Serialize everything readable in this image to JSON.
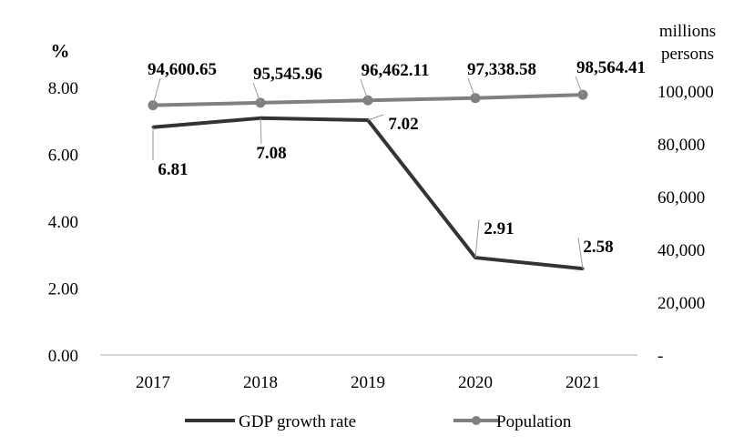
{
  "chart_data": {
    "type": "line",
    "categories": [
      "2017",
      "2018",
      "2019",
      "2020",
      "2021"
    ],
    "series": [
      {
        "name": "GDP growth rate",
        "axis": "left",
        "color": "#333333",
        "values": [
          6.81,
          7.08,
          7.02,
          2.91,
          2.58
        ],
        "labels": [
          "6.81",
          "7.08",
          "7.02",
          "2.91",
          "2.58"
        ]
      },
      {
        "name": "Population",
        "axis": "right",
        "color": "#808080",
        "marker": "circle",
        "values": [
          94600.65,
          95545.96,
          96462.11,
          97338.58,
          98564.41
        ],
        "labels": [
          "94,600.65",
          "95,545.96",
          "96,462.11",
          "97,338.58",
          "98,564.41"
        ]
      }
    ],
    "left_axis": {
      "unit": "%",
      "ylim": [
        0,
        8
      ],
      "ticks": [
        0,
        2,
        4,
        6,
        8
      ],
      "tick_labels": [
        "0.00",
        "2.00",
        "4.00",
        "6.00",
        "8.00"
      ]
    },
    "right_axis": {
      "unit_line1": "millions",
      "unit_line2": "persons",
      "ylim": [
        0,
        100000
      ],
      "ticks": [
        0,
        20000,
        40000,
        60000,
        80000,
        100000
      ],
      "tick_labels": [
        "-",
        "20,000",
        "40,000",
        "60,000",
        "80,000",
        "100,000"
      ]
    },
    "grid": false,
    "legend": {
      "placement": "bottom",
      "entries": [
        "GDP growth rate",
        "Population"
      ]
    }
  }
}
